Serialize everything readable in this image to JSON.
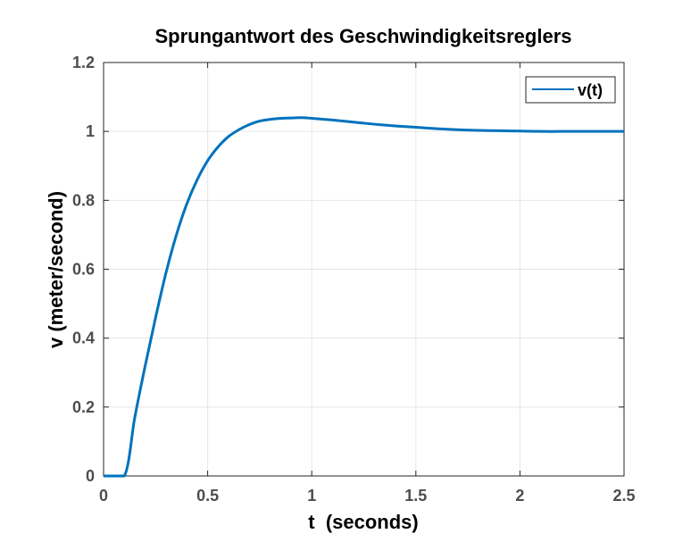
{
  "chart_data": {
    "type": "line",
    "title": "Sprungantwort des Geschwindigkeitsreglers",
    "xlabel": "t  (seconds)",
    "ylabel": "v (meter/second)",
    "xlim": [
      0,
      2.5
    ],
    "ylim": [
      0,
      1.2
    ],
    "xticks": [
      0,
      0.5,
      1,
      1.5,
      2,
      2.5
    ],
    "xtick_labels": [
      "0",
      "0.5",
      "1",
      "1.5",
      "2",
      "2.5"
    ],
    "yticks": [
      0,
      0.2,
      0.4,
      0.6,
      0.8,
      1,
      1.2
    ],
    "ytick_labels": [
      "0",
      "0.2",
      "0.4",
      "0.6",
      "0.8",
      "1",
      "1.2"
    ],
    "grid": true,
    "legend_position": "top-right",
    "series": [
      {
        "name": "v(t)",
        "color": "#0072bd",
        "x": [
          0,
          0.1,
          0.15,
          0.2,
          0.25,
          0.3,
          0.35,
          0.4,
          0.45,
          0.5,
          0.55,
          0.6,
          0.65,
          0.7,
          0.75,
          0.8,
          0.85,
          0.9,
          0.95,
          1.0,
          1.1,
          1.2,
          1.3,
          1.4,
          1.5,
          1.6,
          1.7,
          1.8,
          1.9,
          2.0,
          2.1,
          2.2,
          2.3,
          2.4,
          2.5
        ],
        "y": [
          0,
          0,
          0.17,
          0.32,
          0.46,
          0.59,
          0.7,
          0.79,
          0.86,
          0.915,
          0.955,
          0.985,
          1.005,
          1.02,
          1.03,
          1.035,
          1.038,
          1.039,
          1.04,
          1.038,
          1.033,
          1.027,
          1.021,
          1.016,
          1.012,
          1.008,
          1.005,
          1.003,
          1.002,
          1.001,
          1.0,
          1.0,
          1.0,
          1.0,
          1.0
        ]
      }
    ]
  }
}
